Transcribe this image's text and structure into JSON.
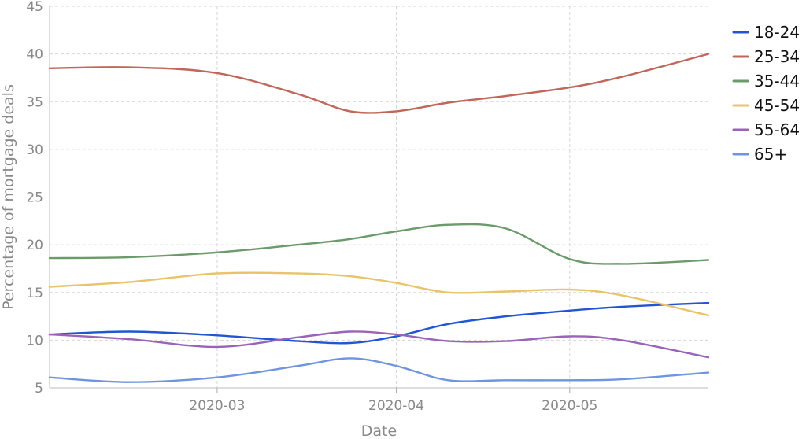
{
  "chart_data": {
    "type": "line",
    "title": "",
    "xlabel": "Date",
    "ylabel": "Percentage of mortgage deals",
    "ylim": [
      5,
      45
    ],
    "yticks": [
      "5",
      "10",
      "15",
      "20",
      "25",
      "30",
      "35",
      "40",
      "45"
    ],
    "xticks": [
      "2020-03",
      "2020-04",
      "2020-05"
    ],
    "xlim": [
      "2020-02-01",
      "2020-05-25"
    ],
    "grid": true,
    "legend_position": "right",
    "x": [
      "2020-02-01",
      "2020-02-15",
      "2020-03-01",
      "2020-03-15",
      "2020-03-24",
      "2020-04-01",
      "2020-04-10",
      "2020-04-20",
      "2020-05-01",
      "2020-05-10",
      "2020-05-25"
    ],
    "series": [
      {
        "name": "18-24",
        "color": "#2255d4",
        "values": [
          10.6,
          10.9,
          10.5,
          9.9,
          9.7,
          10.4,
          11.7,
          12.5,
          13.1,
          13.5,
          13.9
        ]
      },
      {
        "name": "25-34",
        "color": "#c0665a",
        "values": [
          38.5,
          38.6,
          38.0,
          35.8,
          34.0,
          34.0,
          34.9,
          35.6,
          36.5,
          37.6,
          40.0
        ]
      },
      {
        "name": "35-44",
        "color": "#6b9a6b",
        "values": [
          18.6,
          18.7,
          19.2,
          20.0,
          20.6,
          21.4,
          22.1,
          21.7,
          18.5,
          18.0,
          18.4
        ]
      },
      {
        "name": "45-54",
        "color": "#e8c36a",
        "values": [
          15.6,
          16.1,
          17.0,
          17.0,
          16.7,
          16.0,
          15.0,
          15.1,
          15.3,
          14.7,
          12.6
        ]
      },
      {
        "name": "55-64",
        "color": "#9a63b8",
        "values": [
          10.6,
          10.1,
          9.3,
          10.3,
          10.9,
          10.6,
          9.9,
          9.9,
          10.4,
          10.0,
          8.2
        ]
      },
      {
        "name": "65+",
        "color": "#6f95e0",
        "values": [
          6.1,
          5.6,
          6.1,
          7.3,
          8.1,
          7.3,
          5.8,
          5.8,
          5.8,
          5.9,
          6.6
        ]
      }
    ]
  }
}
